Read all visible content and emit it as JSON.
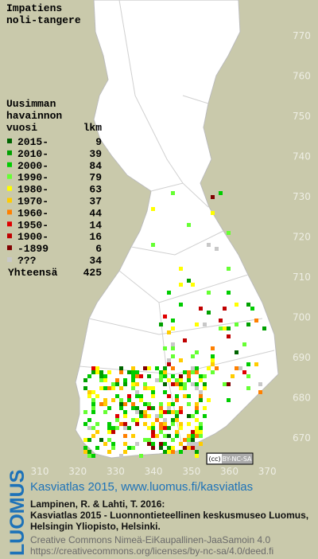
{
  "title_lines": [
    "Impatiens",
    "noli-tangere"
  ],
  "legend": {
    "header_lines": [
      "Uusimman",
      "havainnon",
      "vuosi"
    ],
    "count_header": "lkm",
    "rows": [
      {
        "label": "2015-",
        "count": 9,
        "color": "#006400"
      },
      {
        "label": "2010-",
        "count": 39,
        "color": "#00a000"
      },
      {
        "label": "2000-",
        "count": 84,
        "color": "#00cc00"
      },
      {
        "label": "1990-",
        "count": 79,
        "color": "#66ff33"
      },
      {
        "label": "1980-",
        "count": 63,
        "color": "#ffff00"
      },
      {
        "label": "1970-",
        "count": 37,
        "color": "#ffcc00"
      },
      {
        "label": "1960-",
        "count": 44,
        "color": "#ff8000"
      },
      {
        "label": "1950-",
        "count": 14,
        "color": "#e00000"
      },
      {
        "label": "1900-",
        "count": 16,
        "color": "#c00000"
      },
      {
        "label": "-1899",
        "count": 6,
        "color": "#800000"
      },
      {
        "label": "???",
        "count": 34,
        "color": "#c8c8c8"
      }
    ],
    "total_label": "Yhteensä",
    "total": 425
  },
  "x_axis": [
    310,
    320,
    330,
    340,
    350,
    360,
    370
  ],
  "y_axis": [
    670,
    680,
    690,
    700,
    710,
    720,
    730,
    740,
    750,
    760,
    770
  ],
  "badge": {
    "cc": "(cc)",
    "license": "BY-NC-SA"
  },
  "footer": {
    "brand": "LUOMUS",
    "link": "Kasviatlas 2015, www.luomus.fi/kasviatlas",
    "citation": [
      "Lampinen, R. & Lahti, T. 2016:",
      "Kasviatlas 2015 - Luonnontieteellinen keskusmuseo Luomus,",
      "Helsingin Yliopisto, Helsinki."
    ],
    "license": [
      "Creative Commons Nimeä-EiKaupallinen-JaaSamoin 4.0",
      "https://creativecommons.org/licenses/by-nc-sa/4.0/deed.fi"
    ]
  }
}
